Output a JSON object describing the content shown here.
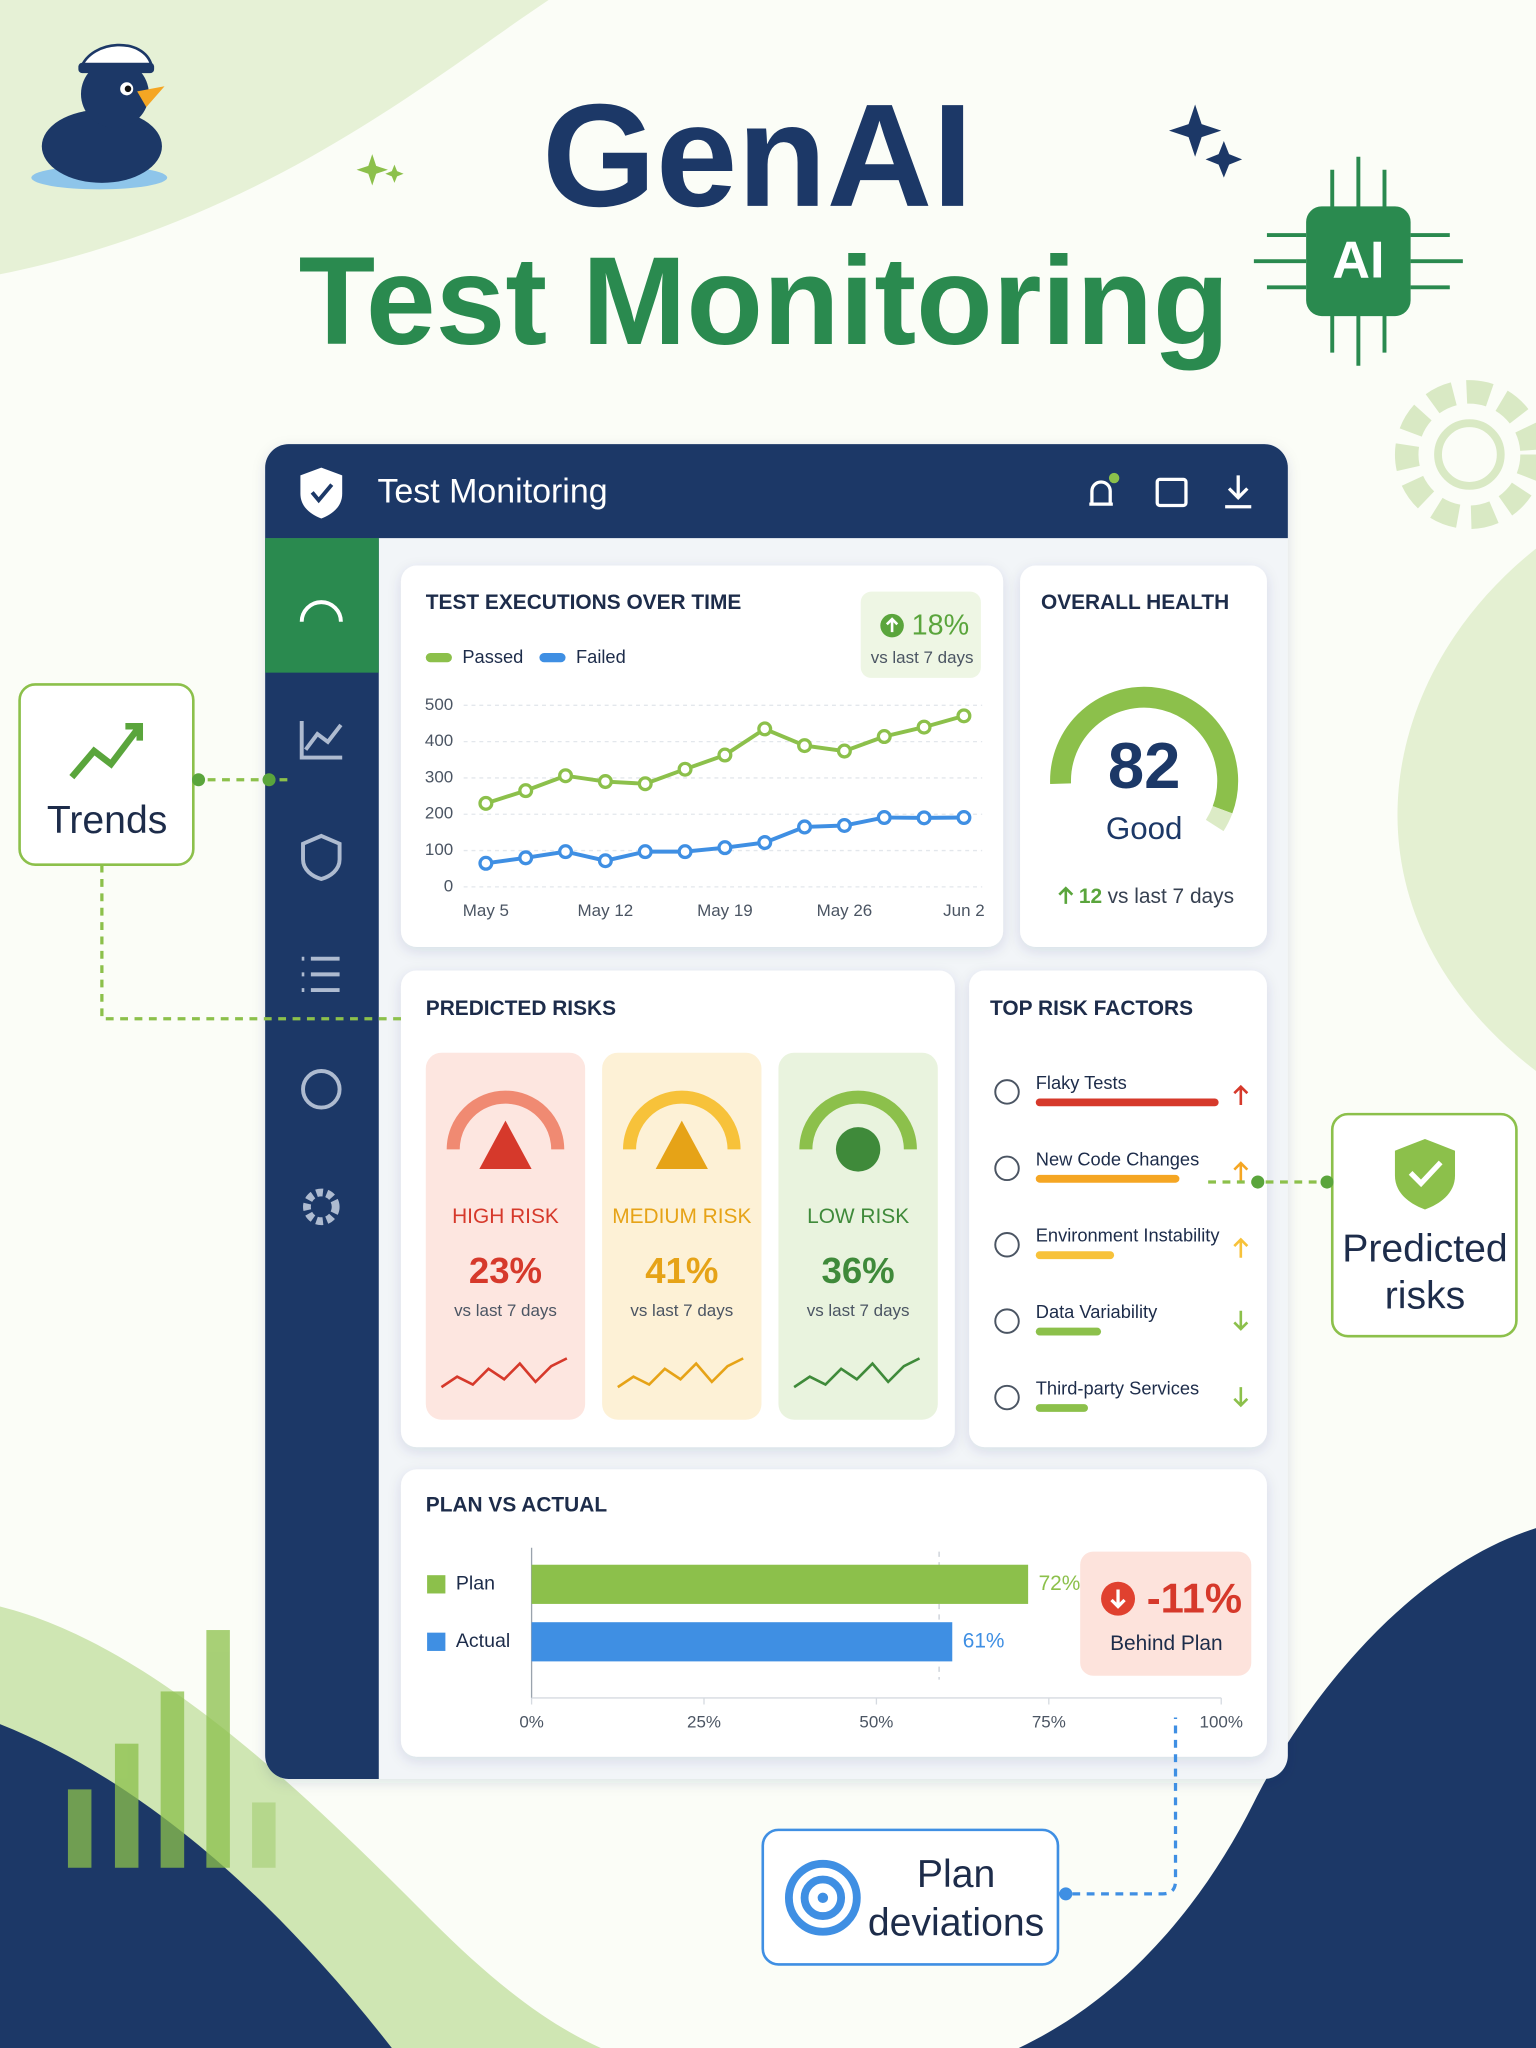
{
  "header": {
    "title": "GenAI",
    "subtitle": "Test Monitoring",
    "chip": "AI"
  },
  "callouts": {
    "trends": "Trends",
    "risks": [
      "Predicted",
      "risks"
    ],
    "plan": [
      "Plan",
      "deviations"
    ]
  },
  "app": {
    "title": "Test Monitoring",
    "trend_card": {
      "change": "18%",
      "change_note": "vs last 7 days"
    },
    "health": {
      "title": "OVERALL HEALTH",
      "score": 82,
      "status": "Good",
      "delta": 12,
      "delta_note": "vs last 7 days"
    },
    "risks": {
      "title": "PREDICTED RISKS",
      "cards": [
        {
          "label": "HIGH RISK",
          "value": "23%",
          "note": "vs last 7 days"
        },
        {
          "label": "MEDIUM RISK",
          "value": "41%",
          "note": "vs last 7 days"
        },
        {
          "label": "LOW RISK",
          "value": "36%",
          "note": "vs last 7 days"
        }
      ]
    },
    "factors": {
      "title": "TOP RISK FACTORS",
      "items": [
        "Flaky Tests",
        "New Code Changes",
        "Environment Instability",
        "Data Variability",
        "Third-party Services"
      ]
    },
    "plan_card": {
      "delta": "-11%",
      "delta_note": "Behind Plan"
    }
  },
  "chart_data": [
    {
      "type": "line",
      "title": "TEST EXECUTIONS OVER TIME",
      "categories": [
        "May 5",
        null,
        null,
        "May 12",
        null,
        null,
        "May 19",
        null,
        null,
        "May 26",
        null,
        null,
        "Jun 2"
      ],
      "series": [
        {
          "name": "Passed",
          "color": "#8cc04b",
          "values": [
            230,
            265,
            306,
            290,
            284,
            324,
            363,
            435,
            389,
            374,
            414,
            440,
            471
          ]
        },
        {
          "name": "Failed",
          "color": "#3f8fe3",
          "values": [
            65,
            80,
            97,
            72,
            97,
            97,
            108,
            122,
            165,
            169,
            191,
            190,
            191
          ]
        }
      ],
      "ylim": [
        0,
        500
      ],
      "yticks": [
        0,
        100,
        200,
        300,
        400,
        500
      ],
      "grid": true
    },
    {
      "type": "bar",
      "orientation": "horizontal",
      "title": "PLAN VS ACTUAL",
      "categories": [
        "Plan",
        "Actual"
      ],
      "values": [
        72,
        61
      ],
      "value_labels": [
        "72%",
        "61%"
      ],
      "colors": [
        "#8cc04b",
        "#3f8fe3"
      ],
      "xlim": [
        0,
        100
      ],
      "xticks": [
        {
          "value": 0,
          "label": "0%"
        },
        {
          "value": 25,
          "label": "25%"
        },
        {
          "value": 50,
          "label": "50%"
        },
        {
          "value": 75,
          "label": "75%"
        },
        {
          "value": 100,
          "label": "100%"
        }
      ]
    }
  ]
}
